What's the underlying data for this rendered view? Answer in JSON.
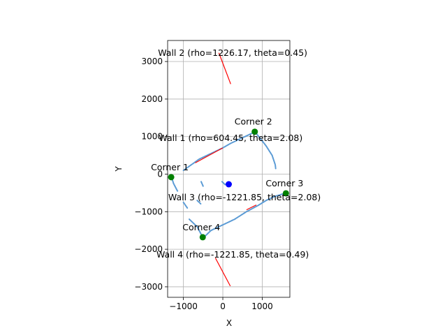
{
  "chart_data": {
    "type": "scatter",
    "title": "",
    "xlabel": "X",
    "ylabel": "Y",
    "xlim": [
      -1400,
      1700
    ],
    "ylim": [
      -3280,
      3560
    ],
    "grid": true,
    "equal_aspect": true,
    "x_ticks": [
      -1000,
      0,
      1000
    ],
    "x_tick_labels": [
      "−1000",
      "0",
      "1000"
    ],
    "y_ticks": [
      -3000,
      -2000,
      -1000,
      0,
      1000,
      2000,
      3000
    ],
    "y_tick_labels": [
      "−3000",
      "−2000",
      "−1000",
      "0",
      "1000",
      "2000",
      "3000"
    ],
    "colors": {
      "scan": "#5b9bd5",
      "scan_dark": "#1f77b4",
      "wall": "#ff0000",
      "corner": "#008000",
      "center": "#0000ff"
    },
    "scan_segments": [
      [
        [
          -1000,
          100
        ],
        [
          -800,
          250
        ],
        [
          -600,
          400
        ],
        [
          -400,
          500
        ],
        [
          -200,
          600
        ],
        [
          0,
          700
        ],
        [
          200,
          820
        ],
        [
          400,
          920
        ],
        [
          600,
          1020
        ],
        [
          800,
          1120
        ]
      ],
      [
        [
          820,
          1120
        ],
        [
          950,
          950
        ],
        [
          1100,
          750
        ],
        [
          1250,
          500
        ],
        [
          1330,
          250
        ],
        [
          1340,
          150
        ]
      ],
      [
        [
          -1300,
          -80
        ],
        [
          -1250,
          -250
        ],
        [
          -1150,
          -450
        ]
      ],
      [
        [
          -1000,
          -750
        ],
        [
          -900,
          -900
        ]
      ],
      [
        [
          -550,
          -200
        ],
        [
          -500,
          -320
        ]
      ],
      [
        [
          -650,
          -700
        ],
        [
          -550,
          -800
        ]
      ],
      [
        [
          -20,
          -200
        ],
        [
          60,
          -280
        ]
      ],
      [
        [
          -850,
          -1200
        ],
        [
          -650,
          -1400
        ],
        [
          -500,
          -1700
        ]
      ],
      [
        [
          -500,
          -1700
        ],
        [
          -300,
          -1500
        ],
        [
          0,
          -1350
        ],
        [
          300,
          -1200
        ],
        [
          600,
          -1000
        ],
        [
          900,
          -830
        ]
      ],
      [
        [
          900,
          -830
        ],
        [
          1100,
          -700
        ],
        [
          1300,
          -600
        ],
        [
          1600,
          -500
        ]
      ]
    ],
    "wall_lines": [
      [
        [
          -100,
          3230
        ],
        [
          200,
          2400
        ]
      ],
      [
        [
          -700,
          300
        ],
        [
          0,
          700
        ]
      ],
      [
        [
          600,
          -950
        ],
        [
          850,
          -820
        ]
      ],
      [
        [
          -190,
          -2230
        ],
        [
          190,
          -2980
        ]
      ]
    ],
    "corners": [
      {
        "label": "Corner 1",
        "x": -1310,
        "y": -80
      },
      {
        "label": "Corner 2",
        "x": 810,
        "y": 1130
      },
      {
        "label": "Corner 3",
        "x": 1600,
        "y": -510
      },
      {
        "label": "Corner 4",
        "x": -510,
        "y": -1680
      }
    ],
    "center_point": {
      "x": 150,
      "y": -270
    },
    "annotations": [
      {
        "text": "Wall 2 (rho=1226.17, theta=0.45)",
        "x": 250,
        "y": 3150
      },
      {
        "text": "Wall 1 (rho=604.45, theta=2.08)",
        "x": 200,
        "y": 880
      },
      {
        "text": "Wall 3 (rho=-1221.85, theta=2.08)",
        "x": 550,
        "y": -700
      },
      {
        "text": "Wall 4 (rho=-1221.85, theta=0.49)",
        "x": 250,
        "y": -2220
      }
    ]
  }
}
